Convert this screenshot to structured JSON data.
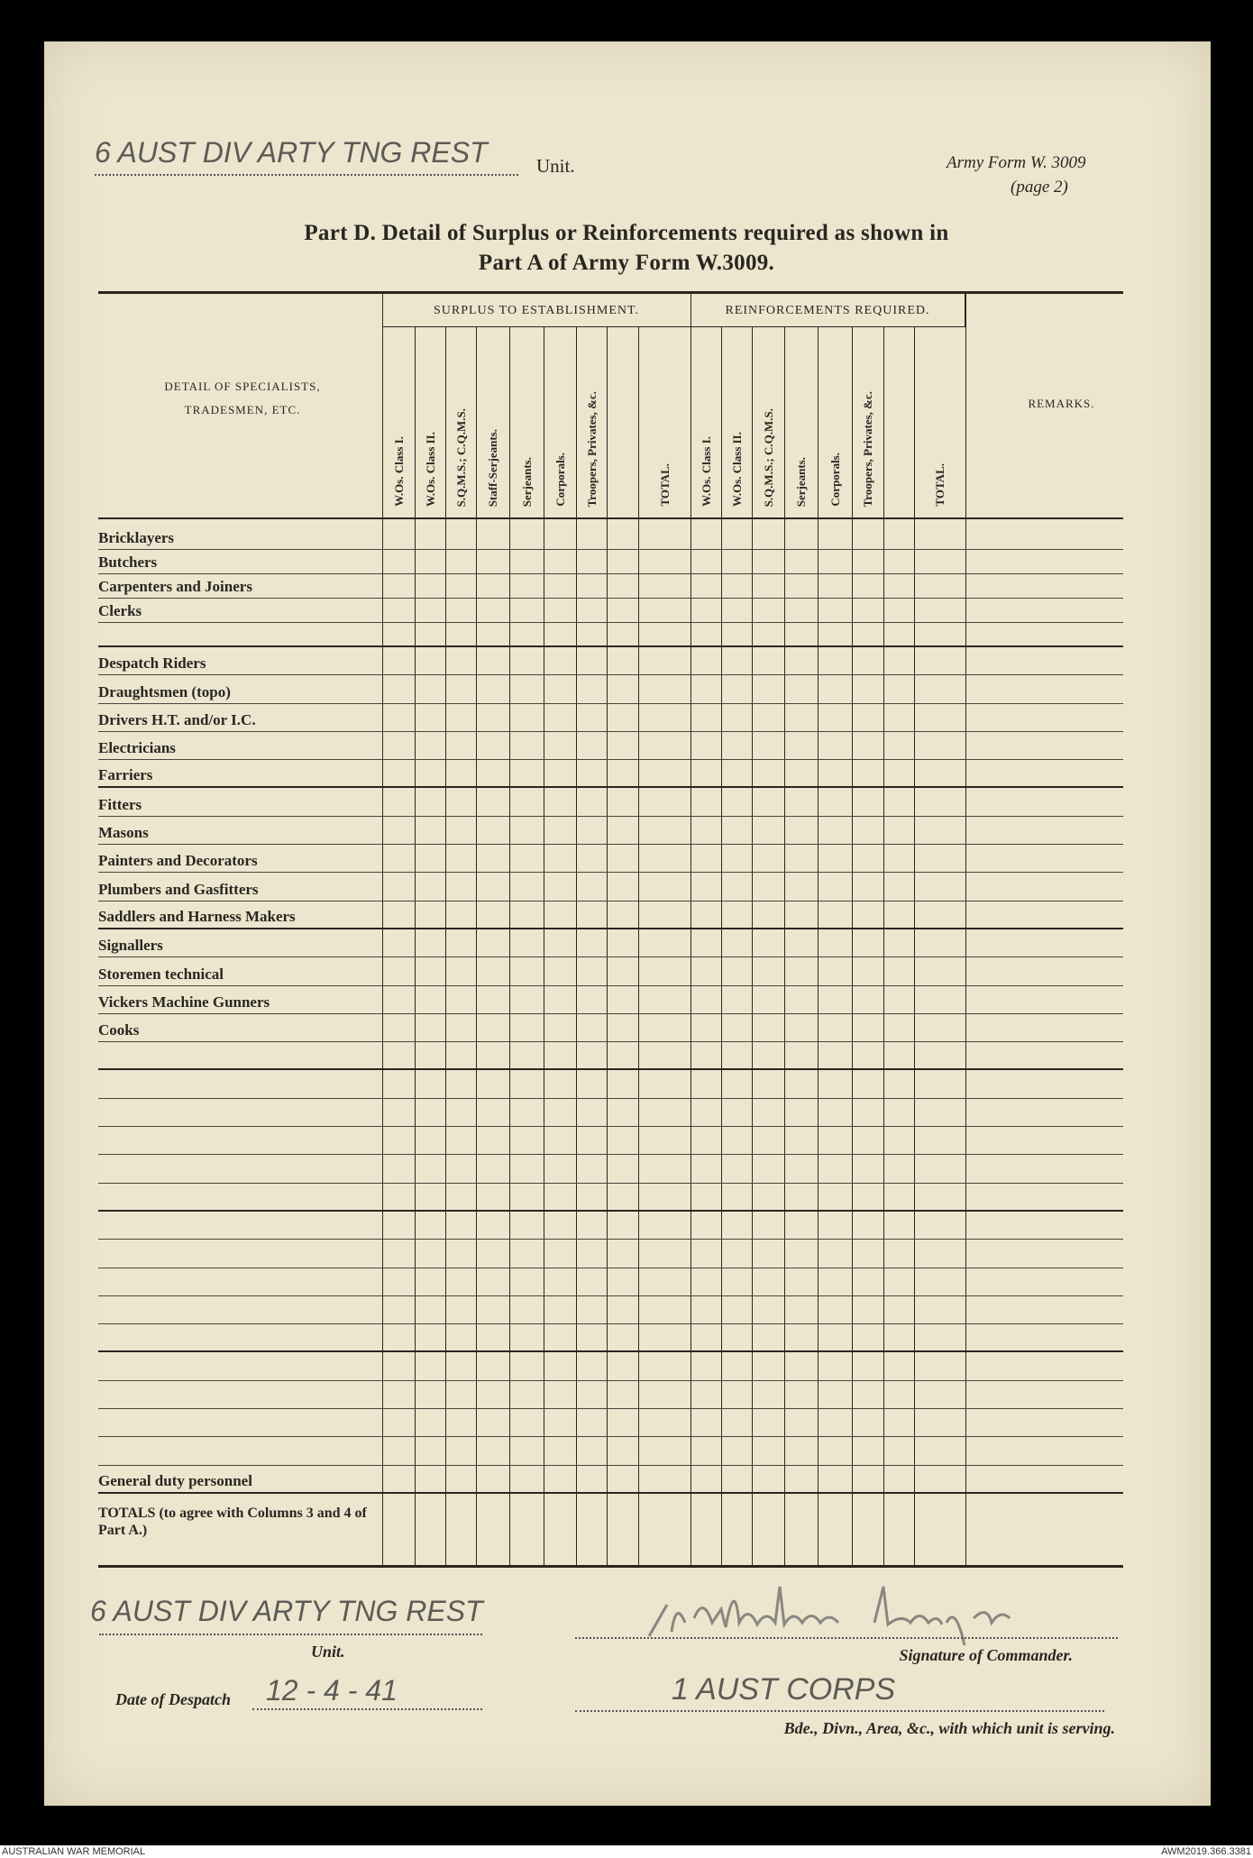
{
  "header": {
    "unit_handwritten": "6 AUST DIV ARTY TNG REST",
    "unit_label": "Unit.",
    "form_ref": "Army Form W. 3009",
    "page_ref": "(page 2)",
    "title_line1": "Part D.  Detail of Surplus or Reinforcements required as shown in",
    "title_line2": "Part A of Army Form W.3009."
  },
  "table": {
    "detail_header": "DETAIL OF SPECIALISTS, TRADESMEN, ETC.",
    "remarks_header": "REMARKS.",
    "surplus_header": "SURPLUS TO ESTABLISHMENT.",
    "reinforcements_header": "REINFORCEMENTS REQUIRED.",
    "surplus_columns": [
      "W.Os. Class I.",
      "W.Os. Class II.",
      "S.Q.M.S.; C.Q.M.S.",
      "Staff-Serjeants.",
      "Serjeants.",
      "Corporals.",
      "Troopers, Privates, &c.",
      "",
      "TOTAL."
    ],
    "reinforcement_columns": [
      "W.Os. Class I.",
      "W.Os. Class II.",
      "S.Q.M.S.; C.Q.M.S.",
      "Serjeants.",
      "Corporals.",
      "Troopers, Privates, &c.",
      "",
      "TOTAL."
    ],
    "row_groups": [
      [
        "Bricklayers",
        "Butchers",
        "Carpenters and Joiners",
        "Clerks",
        ""
      ],
      [
        "Despatch Riders",
        "Draughtsmen (topo)",
        "Drivers H.T. and/or I.C.",
        "Electricians",
        "Farriers"
      ],
      [
        "Fitters",
        "Masons",
        "Painters and Decorators",
        "Plumbers and Gasfitters",
        "Saddlers and Harness Makers"
      ],
      [
        "Signallers",
        "Storemen technical",
        "Vickers Machine Gunners",
        "Cooks",
        ""
      ],
      [
        "",
        "",
        "",
        "",
        ""
      ],
      [
        "",
        "",
        "",
        "",
        ""
      ],
      [
        "",
        "",
        "",
        "",
        "General duty personnel"
      ]
    ],
    "totals_label": "TOTALS (to agree with Columns 3 and 4 of Part A.)"
  },
  "footer_form": {
    "unit_handwritten": "6 AUST DIV ARTY TNG REST",
    "unit_label": "Unit.",
    "date_label": "Date of Despatch",
    "date_handwritten": "12 - 4 - 41",
    "signature_label": "Signature of Commander.",
    "formation_handwritten": "1 AUST CORPS",
    "formation_label": "Bde., Divn., Area, &c., with which unit is serving."
  },
  "archive": {
    "left": "AUSTRALIAN WAR MEMORIAL",
    "right": "AWM2019.366.3381"
  },
  "colors": {
    "paper": "#ece6cf",
    "ink": "#2a2620",
    "pencil": "#5e5a55"
  }
}
